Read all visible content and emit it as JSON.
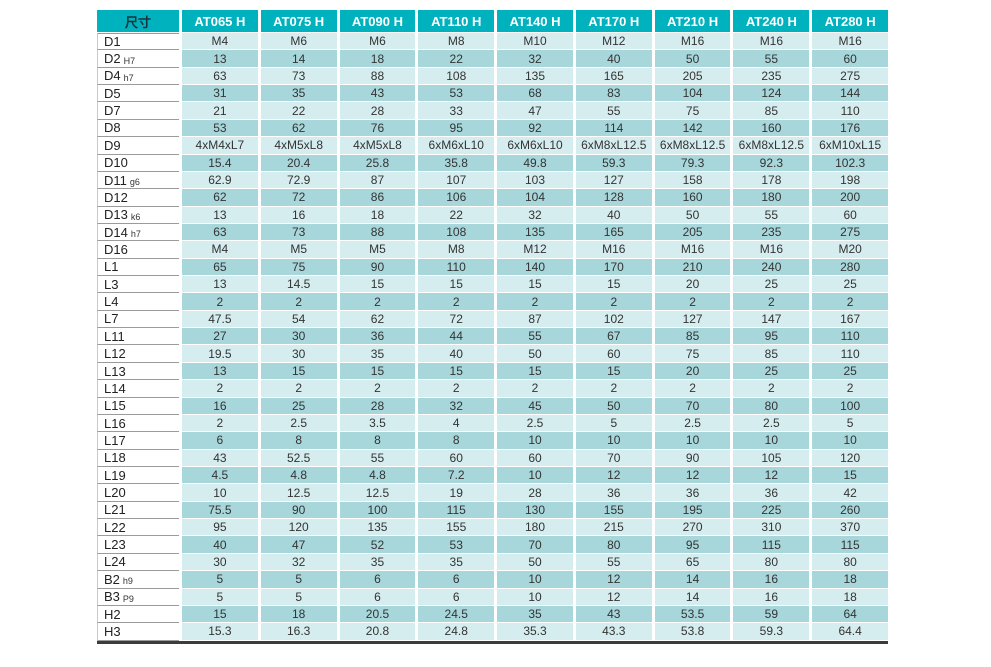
{
  "colors": {
    "header_teal": "#00B1BE",
    "row_light": "#D6EDEF",
    "row_dark": "#A8D7DB",
    "bottom_bar": "#3c3c3c"
  },
  "table": {
    "dim_label": "尺寸",
    "columns": [
      "AT065 H",
      "AT075 H",
      "AT090 H",
      "AT110 H",
      "AT140 H",
      "AT170 H",
      "AT210 H",
      "AT240 H",
      "AT280 H"
    ],
    "rows": [
      {
        "label": "D1",
        "sub": "",
        "values": [
          "M4",
          "M6",
          "M6",
          "M8",
          "M10",
          "M12",
          "M16",
          "M16",
          "M16"
        ]
      },
      {
        "label": "D2",
        "sub": "H7",
        "values": [
          "13",
          "14",
          "18",
          "22",
          "32",
          "40",
          "50",
          "55",
          "60"
        ]
      },
      {
        "label": "D4",
        "sub": "h7",
        "values": [
          "63",
          "73",
          "88",
          "108",
          "135",
          "165",
          "205",
          "235",
          "275"
        ]
      },
      {
        "label": "D5",
        "sub": "",
        "values": [
          "31",
          "35",
          "43",
          "53",
          "68",
          "83",
          "104",
          "124",
          "144"
        ]
      },
      {
        "label": "D7",
        "sub": "",
        "values": [
          "21",
          "22",
          "28",
          "33",
          "47",
          "55",
          "75",
          "85",
          "110"
        ]
      },
      {
        "label": "D8",
        "sub": "",
        "values": [
          "53",
          "62",
          "76",
          "95",
          "92",
          "114",
          "142",
          "160",
          "176"
        ]
      },
      {
        "label": "D9",
        "sub": "",
        "values": [
          "4xM4xL7",
          "4xM5xL8",
          "4xM5xL8",
          "6xM6xL10",
          "6xM6xL10",
          "6xM8xL12.5",
          "6xM8xL12.5",
          "6xM8xL12.5",
          "6xM10xL15"
        ]
      },
      {
        "label": "D10",
        "sub": "",
        "values": [
          "15.4",
          "20.4",
          "25.8",
          "35.8",
          "49.8",
          "59.3",
          "79.3",
          "92.3",
          "102.3"
        ]
      },
      {
        "label": "D11",
        "sub": "g6",
        "values": [
          "62.9",
          "72.9",
          "87",
          "107",
          "103",
          "127",
          "158",
          "178",
          "198"
        ]
      },
      {
        "label": "D12",
        "sub": "",
        "values": [
          "62",
          "72",
          "86",
          "106",
          "104",
          "128",
          "160",
          "180",
          "200"
        ]
      },
      {
        "label": "D13",
        "sub": "k6",
        "values": [
          "13",
          "16",
          "18",
          "22",
          "32",
          "40",
          "50",
          "55",
          "60"
        ]
      },
      {
        "label": "D14",
        "sub": "h7",
        "values": [
          "63",
          "73",
          "88",
          "108",
          "135",
          "165",
          "205",
          "235",
          "275"
        ]
      },
      {
        "label": "D16",
        "sub": "",
        "values": [
          "M4",
          "M5",
          "M5",
          "M8",
          "M12",
          "M16",
          "M16",
          "M16",
          "M20"
        ]
      },
      {
        "label": "L1",
        "sub": "",
        "values": [
          "65",
          "75",
          "90",
          "110",
          "140",
          "170",
          "210",
          "240",
          "280"
        ]
      },
      {
        "label": "L3",
        "sub": "",
        "values": [
          "13",
          "14.5",
          "15",
          "15",
          "15",
          "15",
          "20",
          "25",
          "25"
        ]
      },
      {
        "label": "L4",
        "sub": "",
        "values": [
          "2",
          "2",
          "2",
          "2",
          "2",
          "2",
          "2",
          "2",
          "2"
        ]
      },
      {
        "label": "L7",
        "sub": "",
        "values": [
          "47.5",
          "54",
          "62",
          "72",
          "87",
          "102",
          "127",
          "147",
          "167"
        ]
      },
      {
        "label": "L11",
        "sub": "",
        "values": [
          "27",
          "30",
          "36",
          "44",
          "55",
          "67",
          "85",
          "95",
          "110"
        ]
      },
      {
        "label": "L12",
        "sub": "",
        "values": [
          "19.5",
          "30",
          "35",
          "40",
          "50",
          "60",
          "75",
          "85",
          "110"
        ]
      },
      {
        "label": "L13",
        "sub": "",
        "values": [
          "13",
          "15",
          "15",
          "15",
          "15",
          "15",
          "20",
          "25",
          "25"
        ]
      },
      {
        "label": "L14",
        "sub": "",
        "values": [
          "2",
          "2",
          "2",
          "2",
          "2",
          "2",
          "2",
          "2",
          "2"
        ]
      },
      {
        "label": "L15",
        "sub": "",
        "values": [
          "16",
          "25",
          "28",
          "32",
          "45",
          "50",
          "70",
          "80",
          "100"
        ]
      },
      {
        "label": "L16",
        "sub": "",
        "values": [
          "2",
          "2.5",
          "3.5",
          "4",
          "2.5",
          "5",
          "2.5",
          "2.5",
          "5"
        ]
      },
      {
        "label": "L17",
        "sub": "",
        "values": [
          "6",
          "8",
          "8",
          "8",
          "10",
          "10",
          "10",
          "10",
          "10"
        ]
      },
      {
        "label": "L18",
        "sub": "",
        "values": [
          "43",
          "52.5",
          "55",
          "60",
          "60",
          "70",
          "90",
          "105",
          "120"
        ]
      },
      {
        "label": "L19",
        "sub": "",
        "values": [
          "4.5",
          "4.8",
          "4.8",
          "7.2",
          "10",
          "12",
          "12",
          "12",
          "15"
        ]
      },
      {
        "label": "L20",
        "sub": "",
        "values": [
          "10",
          "12.5",
          "12.5",
          "19",
          "28",
          "36",
          "36",
          "36",
          "42"
        ]
      },
      {
        "label": "L21",
        "sub": "",
        "values": [
          "75.5",
          "90",
          "100",
          "115",
          "130",
          "155",
          "195",
          "225",
          "260"
        ]
      },
      {
        "label": "L22",
        "sub": "",
        "values": [
          "95",
          "120",
          "135",
          "155",
          "180",
          "215",
          "270",
          "310",
          "370"
        ]
      },
      {
        "label": "L23",
        "sub": "",
        "values": [
          "40",
          "47",
          "52",
          "53",
          "70",
          "80",
          "95",
          "115",
          "115"
        ]
      },
      {
        "label": "L24",
        "sub": "",
        "values": [
          "30",
          "32",
          "35",
          "35",
          "50",
          "55",
          "65",
          "80",
          "80"
        ]
      },
      {
        "label": "B2",
        "sub": "h9",
        "values": [
          "5",
          "5",
          "6",
          "6",
          "10",
          "12",
          "14",
          "16",
          "18"
        ]
      },
      {
        "label": "B3",
        "sub": "P9",
        "values": [
          "5",
          "5",
          "6",
          "6",
          "10",
          "12",
          "14",
          "16",
          "18"
        ]
      },
      {
        "label": "H2",
        "sub": "",
        "values": [
          "15",
          "18",
          "20.5",
          "24.5",
          "35",
          "43",
          "53.5",
          "59",
          "64"
        ]
      },
      {
        "label": "H3",
        "sub": "",
        "values": [
          "15.3",
          "16.3",
          "20.8",
          "24.8",
          "35.3",
          "43.3",
          "53.8",
          "59.3",
          "64.4"
        ]
      }
    ]
  }
}
